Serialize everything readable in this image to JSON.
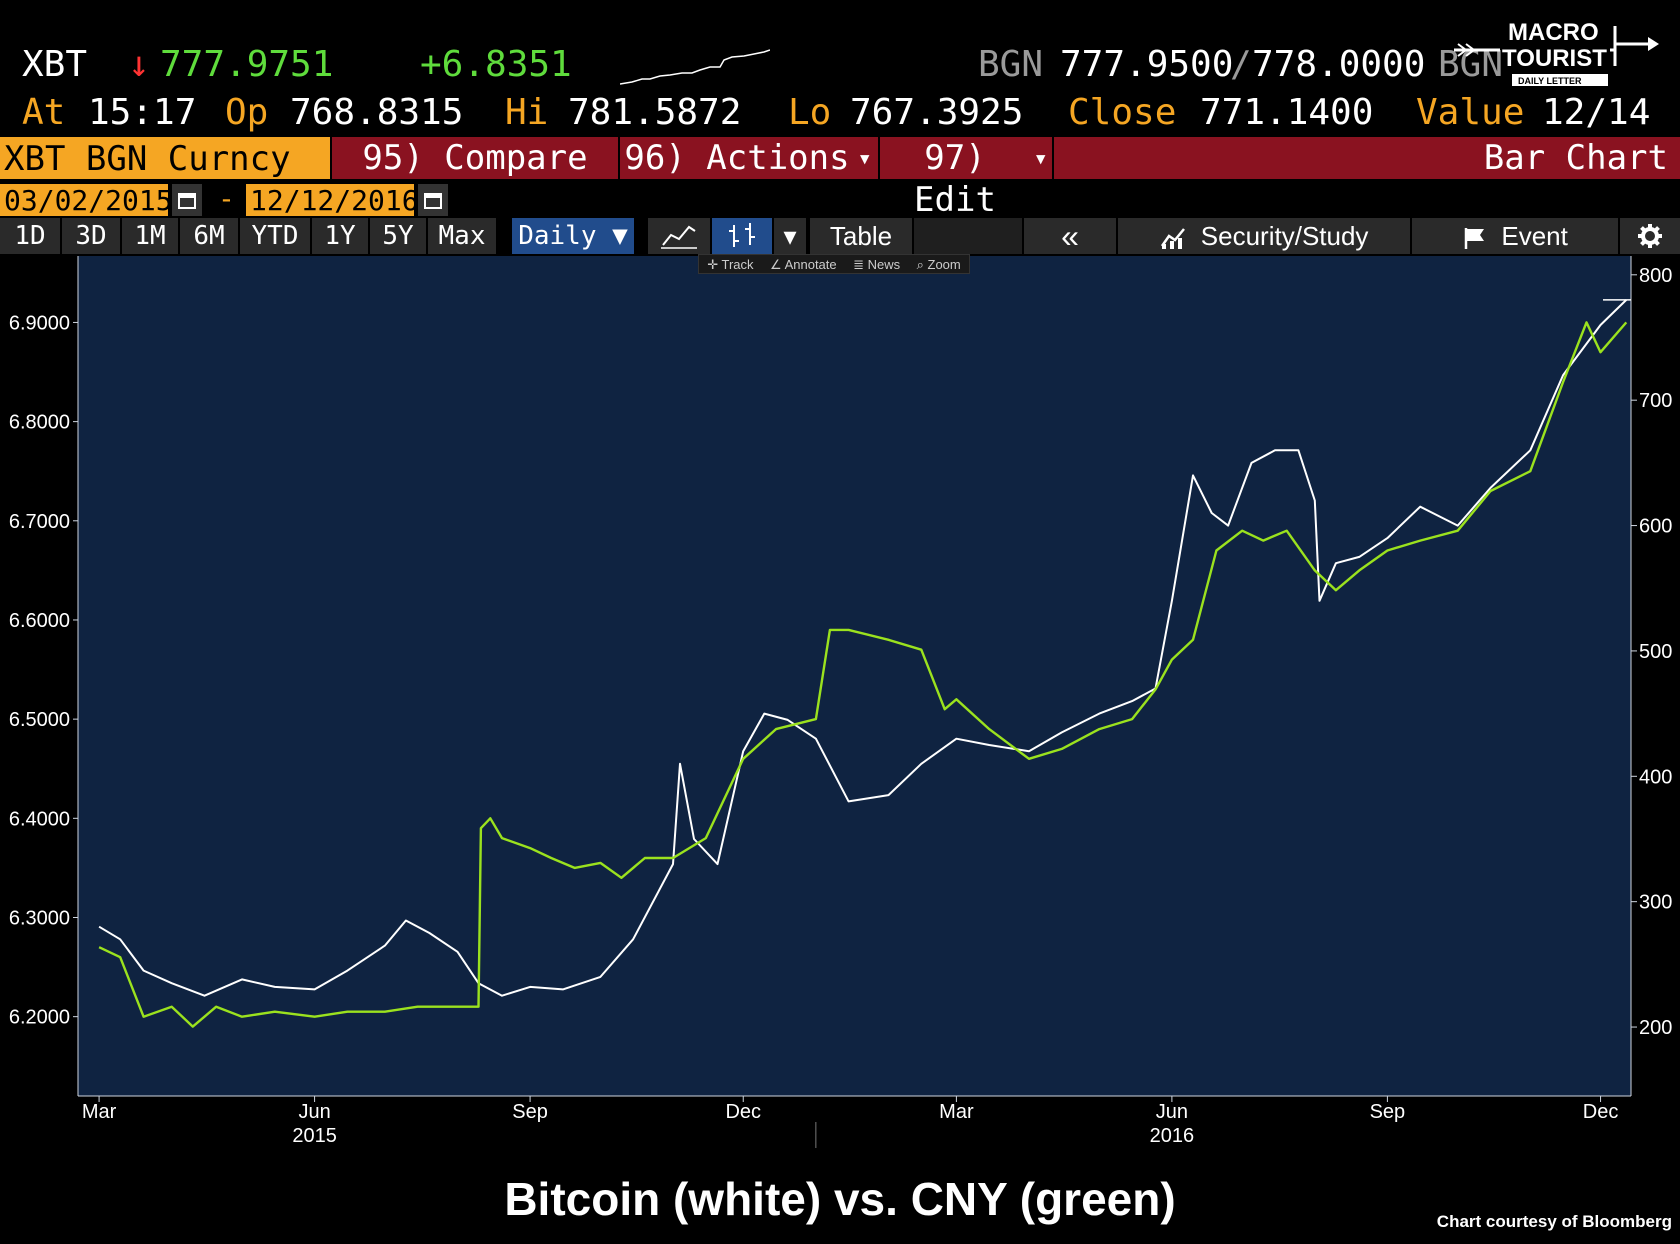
{
  "header": {
    "ticker": "XBT",
    "arrow": "↓",
    "last_price": "777.9751",
    "change": "+6.8351",
    "bgn_label": "BGN",
    "bid_ask_bid": "777.9500",
    "bid_ask_sep": "/",
    "bid_ask_ask": "778.0000",
    "bgn_label2": "BGN",
    "at_label": "At",
    "at_value": "15:17",
    "op_label": "Op",
    "op_value": "768.8315",
    "hi_label": "Hi",
    "hi_value": "781.5872",
    "lo_label": "Lo",
    "lo_value": "767.3925",
    "close_label": "Close",
    "close_value": "771.1400",
    "value_label": "Value",
    "value_value": "12/14"
  },
  "logo": {
    "line1": "MACRO",
    "line2": "TOURIST",
    "line3": "DAILY LETTER"
  },
  "menu": {
    "security": "XBT BGN Curncy",
    "compare": "95) Compare",
    "actions": "96) Actions",
    "edit": "97) Edit",
    "bar_chart": "Bar Chart",
    "dropdown_caret": "▾"
  },
  "date_range": {
    "start": "03/02/2015",
    "sep": "-",
    "end": "12/12/2016"
  },
  "toolbar": {
    "periods": [
      "1D",
      "3D",
      "1M",
      "6M",
      "YTD",
      "1Y",
      "5Y",
      "Max"
    ],
    "frequency": "Daily ▼",
    "table": "Table",
    "collapse": "«",
    "security_study": "Security/Study",
    "event": "Event",
    "mini": [
      "Track",
      "Annotate",
      "News",
      "Zoom"
    ]
  },
  "icons": {
    "calendar": "calendar-icon",
    "line_chart": "line-chart-icon",
    "bar_chart": "bar-chart-icon",
    "study": "study-icon",
    "flag": "flag-icon",
    "settings": "gear-icon"
  },
  "colors": {
    "bitcoin": "#ffffff",
    "cny": "#9be21e",
    "plot_bg": "#0f2341",
    "accent_orange": "#f5a623",
    "menu_red": "#8a1220"
  },
  "chart_data": {
    "type": "line",
    "title": "Bitcoin (white) vs. CNY (green)",
    "credit": "Chart courtesy of Bloomberg",
    "x_ticks": [
      "Mar",
      "Jun",
      "Sep",
      "Dec",
      "Mar",
      "Jun",
      "Sep",
      "Dec"
    ],
    "x_tick_dates": [
      "2015-03-01",
      "2015-06-01",
      "2015-09-01",
      "2015-12-01",
      "2016-03-01",
      "2016-06-01",
      "2016-09-01",
      "2016-12-01"
    ],
    "year_labels": [
      {
        "text": "2015",
        "date": "2015-06-01"
      },
      {
        "text": "2016",
        "date": "2016-06-01"
      }
    ],
    "xlim": [
      "2015-02-20",
      "2016-12-14"
    ],
    "left_axis": {
      "ticks": [
        "6.2000",
        "6.3000",
        "6.4000",
        "6.5000",
        "6.6000",
        "6.7000",
        "6.8000",
        "6.9000"
      ],
      "ylim": [
        6.12,
        6.967
      ]
    },
    "right_axis": {
      "ticks": [
        "200",
        "300",
        "400",
        "500",
        "600",
        "700",
        "800"
      ],
      "ylim": [
        145,
        815
      ]
    },
    "series": [
      {
        "axis": "right",
        "x": [
          "2015-03-01",
          "2015-03-10",
          "2015-03-20",
          "2015-04-01",
          "2015-04-15",
          "2015-05-01",
          "2015-05-15",
          "2015-06-01",
          "2015-06-15",
          "2015-07-01",
          "2015-07-10",
          "2015-07-20",
          "2015-08-01",
          "2015-08-10",
          "2015-08-20",
          "2015-09-01",
          "2015-09-15",
          "2015-10-01",
          "2015-10-15",
          "2015-11-01",
          "2015-11-04",
          "2015-11-10",
          "2015-11-20",
          "2015-12-01",
          "2015-12-10",
          "2015-12-20",
          "2016-01-01",
          "2016-01-15",
          "2016-02-01",
          "2016-02-15",
          "2016-03-01",
          "2016-03-15",
          "2016-04-01",
          "2016-04-15",
          "2016-05-01",
          "2016-05-15",
          "2016-05-25",
          "2016-06-01",
          "2016-06-10",
          "2016-06-18",
          "2016-06-25",
          "2016-07-05",
          "2016-07-15",
          "2016-07-25",
          "2016-08-01",
          "2016-08-03",
          "2016-08-10",
          "2016-08-20",
          "2016-09-01",
          "2016-09-15",
          "2016-10-01",
          "2016-10-15",
          "2016-11-01",
          "2016-11-15",
          "2016-12-01",
          "2016-12-12"
        ],
        "values": [
          280,
          270,
          245,
          235,
          225,
          238,
          232,
          230,
          245,
          265,
          285,
          275,
          260,
          235,
          225,
          232,
          230,
          240,
          270,
          330,
          410,
          350,
          330,
          420,
          450,
          445,
          430,
          380,
          385,
          410,
          430,
          425,
          420,
          435,
          450,
          460,
          470,
          540,
          640,
          610,
          600,
          650,
          660,
          660,
          620,
          540,
          570,
          575,
          590,
          615,
          600,
          630,
          660,
          720,
          760,
          780
        ]
      },
      {
        "axis": "left",
        "x": [
          "2015-03-01",
          "2015-03-10",
          "2015-03-20",
          "2015-04-01",
          "2015-04-10",
          "2015-04-20",
          "2015-05-01",
          "2015-05-15",
          "2015-06-01",
          "2015-06-15",
          "2015-07-01",
          "2015-07-15",
          "2015-08-01",
          "2015-08-10",
          "2015-08-11",
          "2015-08-15",
          "2015-08-20",
          "2015-09-01",
          "2015-09-10",
          "2015-09-20",
          "2015-10-01",
          "2015-10-10",
          "2015-10-20",
          "2015-11-01",
          "2015-11-15",
          "2015-12-01",
          "2015-12-15",
          "2016-01-01",
          "2016-01-07",
          "2016-01-15",
          "2016-02-01",
          "2016-02-15",
          "2016-02-25",
          "2016-03-01",
          "2016-03-15",
          "2016-04-01",
          "2016-04-15",
          "2016-05-01",
          "2016-05-15",
          "2016-05-25",
          "2016-06-01",
          "2016-06-10",
          "2016-06-20",
          "2016-07-01",
          "2016-07-10",
          "2016-07-20",
          "2016-08-01",
          "2016-08-10",
          "2016-08-20",
          "2016-09-01",
          "2016-09-15",
          "2016-10-01",
          "2016-10-15",
          "2016-11-01",
          "2016-11-15",
          "2016-11-25",
          "2016-12-01",
          "2016-12-12"
        ],
        "values": [
          6.27,
          6.26,
          6.2,
          6.21,
          6.19,
          6.21,
          6.2,
          6.205,
          6.2,
          6.205,
          6.205,
          6.21,
          6.21,
          6.21,
          6.39,
          6.4,
          6.38,
          6.37,
          6.36,
          6.35,
          6.355,
          6.34,
          6.36,
          6.36,
          6.38,
          6.46,
          6.49,
          6.5,
          6.59,
          6.59,
          6.58,
          6.57,
          6.51,
          6.52,
          6.49,
          6.46,
          6.47,
          6.49,
          6.5,
          6.53,
          6.56,
          6.58,
          6.67,
          6.69,
          6.68,
          6.69,
          6.65,
          6.63,
          6.65,
          6.67,
          6.68,
          6.69,
          6.73,
          6.75,
          6.84,
          6.9,
          6.87,
          6.9
        ]
      }
    ]
  }
}
